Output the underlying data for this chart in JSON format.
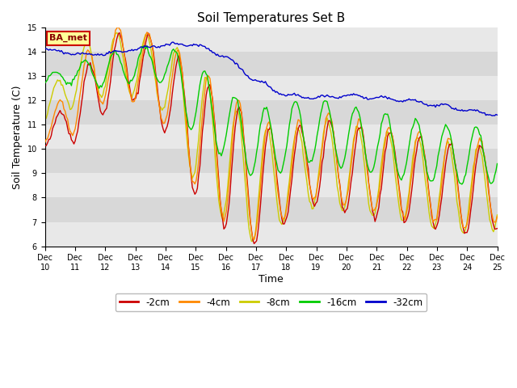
{
  "title": "Soil Temperatures Set B",
  "xlabel": "Time",
  "ylabel": "Soil Temperature (C)",
  "ylim": [
    6.0,
    15.0
  ],
  "yticks": [
    6.0,
    7.0,
    8.0,
    9.0,
    10.0,
    11.0,
    12.0,
    13.0,
    14.0,
    15.0
  ],
  "n_points": 360,
  "n_days": 15,
  "xtick_labels": [
    "Dec 10",
    "Dec 11",
    "Dec 12",
    "Dec 13",
    "Dec 14",
    "Dec 15",
    "Dec 16",
    "Dec 17",
    "Dec 18",
    "Dec 19",
    "Dec 20",
    "Dec 21",
    "Dec 22",
    "Dec 23",
    "Dec 24",
    "Dec 25"
  ],
  "colors": {
    "-2cm": "#cc0000",
    "-4cm": "#ff8800",
    "-8cm": "#cccc00",
    "-16cm": "#00cc00",
    "-32cm": "#0000cc"
  },
  "legend_labels": [
    "-2cm",
    "-4cm",
    "-8cm",
    "-16cm",
    "-32cm"
  ],
  "annotation_text": "BA_met",
  "annotation_bg": "#ffff99",
  "annotation_border": "#cc0000",
  "fig_bg": "#ffffff",
  "plot_bg": "#e8e8e8",
  "band_colors": [
    "#e0e0e0",
    "#d0d0d0"
  ],
  "linewidth": 1.0,
  "title_fontsize": 11,
  "tick_fontsize": 7,
  "ylabel_fontsize": 9,
  "xlabel_fontsize": 9
}
